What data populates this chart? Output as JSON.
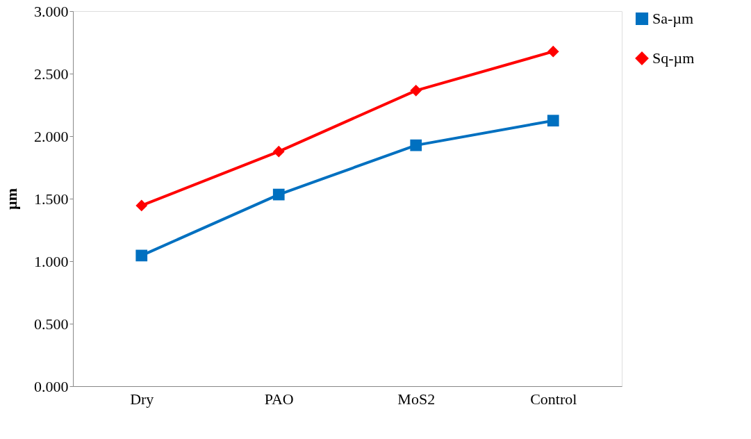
{
  "chart_data": {
    "type": "line",
    "ylabel": "µm",
    "categories": [
      "Dry",
      "PAO",
      "MoS2",
      "Control"
    ],
    "series": [
      {
        "name": "Sa-µm",
        "color": "#0070c0",
        "marker": "square",
        "values": [
          1.045,
          1.533,
          1.927,
          2.124
        ]
      },
      {
        "name": "Sq-µm",
        "color": "#ff0000",
        "marker": "diamond",
        "values": [
          1.445,
          1.877,
          2.365,
          2.677
        ]
      }
    ],
    "ylim": [
      0,
      3
    ],
    "yticks": [
      {
        "value": 0,
        "label": "0.000"
      },
      {
        "value": 0.5,
        "label": "0.500"
      },
      {
        "value": 1,
        "label": "1.000"
      },
      {
        "value": 1.5,
        "label": "1.500"
      },
      {
        "value": 2,
        "label": "2.000"
      },
      {
        "value": 2.5,
        "label": "2.500"
      },
      {
        "value": 3,
        "label": "3.000"
      }
    ],
    "grid": false,
    "legend": "right",
    "line_style": "solid"
  }
}
